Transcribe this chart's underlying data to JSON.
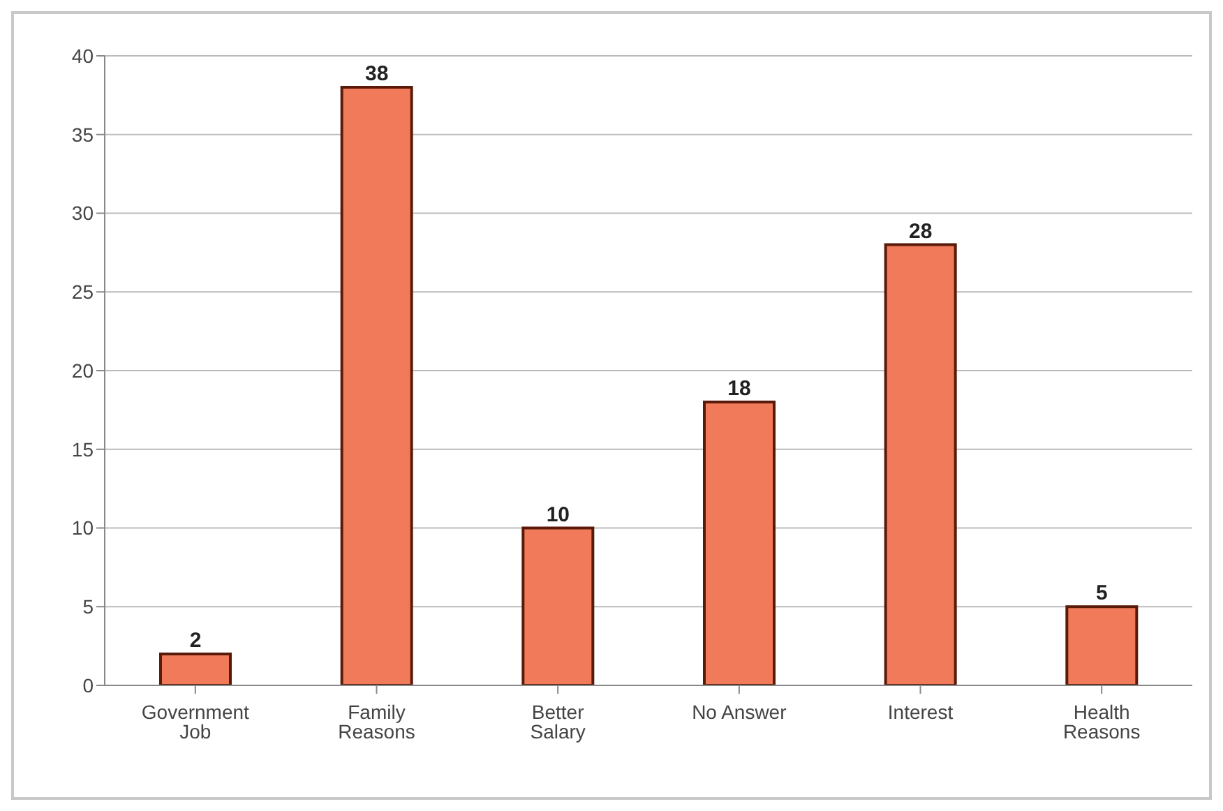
{
  "chart_data": {
    "type": "bar",
    "categories": [
      "Government Job",
      "Family Reasons",
      "Better Salary",
      "No Answer",
      "Interest",
      "Health Reasons"
    ],
    "values": [
      2,
      38,
      10,
      18,
      28,
      5
    ],
    "color": "#f07a5a",
    "ylim": [
      0,
      40
    ],
    "yticks": [
      0,
      5,
      10,
      15,
      20,
      25,
      30,
      35,
      40
    ],
    "grid": "y",
    "data_labels": true
  }
}
